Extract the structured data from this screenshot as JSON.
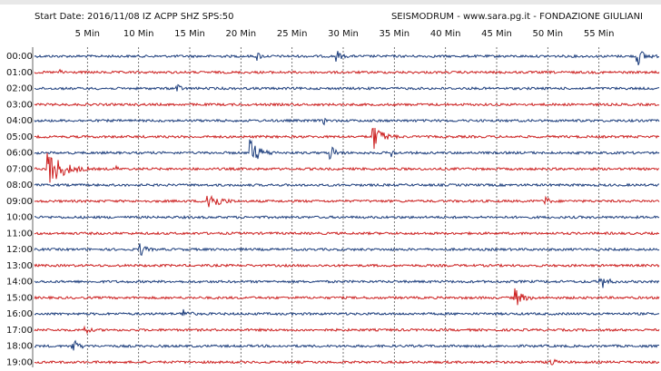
{
  "header": {
    "left": "Start Date: 2016/11/08 IZ ACPP SHZ SPS:50",
    "right": "SEISMODRUM - www.sara.pg.it - FONDAZIONE GIULIANI"
  },
  "minute_labels": [
    "5 Min",
    "10 Min",
    "15 Min",
    "20 Min",
    "25 Min",
    "30 Min",
    "35 Min",
    "40 Min",
    "45 Min",
    "50 Min",
    "55 Min"
  ],
  "hour_labels": [
    "00:00",
    "01:00",
    "02:00",
    "03:00",
    "04:00",
    "05:00",
    "06:00",
    "07:00",
    "08:00",
    "09:00",
    "10:00",
    "11:00",
    "12:00",
    "13:00",
    "14:00",
    "15:00",
    "16:00",
    "17:00",
    "18:00",
    "19:00"
  ]
}
